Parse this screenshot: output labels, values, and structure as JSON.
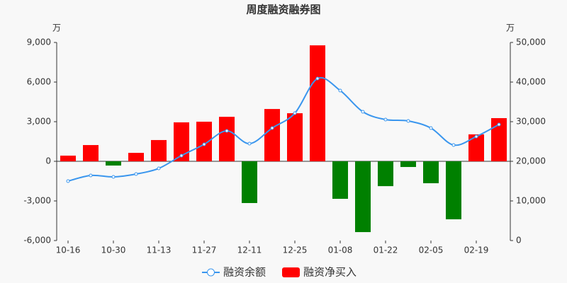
{
  "chart_data": {
    "type": "bar-line",
    "title": "周度融资融券图",
    "y_label": "万",
    "y2_label": "万",
    "categories": [
      "10-16",
      null,
      "10-30",
      null,
      "11-13",
      null,
      "11-27",
      null,
      "12-11",
      null,
      "12-25",
      null,
      "01-08",
      null,
      "01-22",
      null,
      "02-05",
      null,
      "02-19",
      null
    ],
    "series": [
      {
        "name": "融资余额",
        "type": "line",
        "axis": "y2",
        "color": "#3a96ee",
        "values": [
          15000,
          16430,
          16070,
          16790,
          18210,
          21430,
          24290,
          27680,
          24460,
          28390,
          32140,
          40890,
          37860,
          32500,
          30540,
          30180,
          28390,
          24110,
          26250,
          29290
        ]
      },
      {
        "name": "融资净买入",
        "type": "bar",
        "color": "#ff0000",
        "negative_color": "#008000",
        "values": [
          430,
          1230,
          -320,
          640,
          1610,
          2950,
          3000,
          3370,
          -3160,
          3960,
          3640,
          8780,
          -2840,
          -5360,
          -1880,
          -430,
          -1660,
          -4390,
          2040,
          3270
        ]
      }
    ],
    "ylim": [
      -6000,
      9000
    ],
    "yticks": [
      {
        "value": -6000,
        "label": "-6,000"
      },
      {
        "value": -3000,
        "label": "-3,000"
      },
      0,
      {
        "value": 3000,
        "label": "3,000"
      },
      {
        "value": 6000,
        "label": "6,000"
      },
      {
        "value": 9000,
        "label": "9,000"
      }
    ],
    "y2lim": [
      0,
      50000
    ],
    "y2ticks": [
      0,
      {
        "value": 10000,
        "label": "10,000"
      },
      {
        "value": 20000,
        "label": "20,000"
      },
      {
        "value": 30000,
        "label": "30,000"
      },
      {
        "value": 40000,
        "label": "40,000"
      },
      {
        "value": 50000,
        "label": "50,000"
      }
    ]
  }
}
